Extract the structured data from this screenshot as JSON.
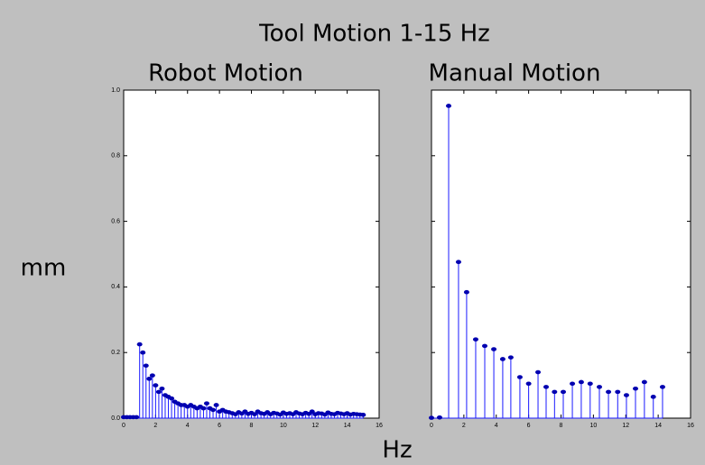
{
  "title": "Tool Motion 1-15 Hz",
  "ylabel": "mm",
  "xlabel": "Hz",
  "chart_data": [
    {
      "type": "stem",
      "title": "Robot Motion",
      "color": "#1a1aff",
      "x": [
        0,
        0.2,
        0.4,
        0.6,
        0.8,
        1,
        1.2,
        1.4,
        1.6,
        1.8,
        2,
        2.2,
        2.4,
        2.6,
        2.8,
        3,
        3.2,
        3.4,
        3.6,
        3.8,
        4,
        4.2,
        4.4,
        4.6,
        4.8,
        5,
        5.2,
        5.4,
        5.6,
        5.8,
        6,
        6.2,
        6.4,
        6.6,
        6.8,
        7,
        7.2,
        7.4,
        7.6,
        7.8,
        8,
        8.2,
        8.4,
        8.6,
        8.8,
        9,
        9.2,
        9.4,
        9.6,
        9.8,
        10,
        10.2,
        10.4,
        10.6,
        10.8,
        11,
        11.2,
        11.4,
        11.6,
        11.8,
        12,
        12.2,
        12.4,
        12.6,
        12.8,
        13,
        13.2,
        13.4,
        13.6,
        13.8,
        14,
        14.2,
        14.4,
        14.6,
        14.8,
        15
      ],
      "values": [
        0.003,
        0.003,
        0.003,
        0.003,
        0.003,
        0.225,
        0.2,
        0.16,
        0.12,
        0.13,
        0.1,
        0.08,
        0.09,
        0.07,
        0.065,
        0.06,
        0.05,
        0.045,
        0.04,
        0.04,
        0.035,
        0.04,
        0.035,
        0.03,
        0.035,
        0.03,
        0.045,
        0.03,
        0.025,
        0.04,
        0.02,
        0.025,
        0.02,
        0.018,
        0.015,
        0.012,
        0.018,
        0.014,
        0.02,
        0.013,
        0.016,
        0.012,
        0.02,
        0.015,
        0.013,
        0.018,
        0.012,
        0.016,
        0.014,
        0.011,
        0.017,
        0.013,
        0.015,
        0.012,
        0.018,
        0.014,
        0.012,
        0.016,
        0.013,
        0.02,
        0.012,
        0.015,
        0.014,
        0.011,
        0.017,
        0.013,
        0.012,
        0.016,
        0.014,
        0.012,
        0.015,
        0.011,
        0.013,
        0.012,
        0.011,
        0.01
      ],
      "xlim": [
        0,
        16
      ],
      "xticks": [
        0,
        2,
        4,
        6,
        8,
        10,
        12,
        14,
        16
      ],
      "ylim": [
        0,
        1
      ],
      "yticks": [
        {
          "value": 0,
          "label": "0.0"
        },
        0.2,
        0.4,
        0.6,
        0.8,
        {
          "value": 1,
          "label": "1.0"
        }
      ],
      "show_ytick_labels": true
    },
    {
      "type": "stem",
      "title": "Manual Motion",
      "color": "#1a1aff",
      "x": [
        0,
        0.5,
        1.06,
        1.67,
        2.17,
        2.73,
        3.29,
        3.85,
        4.4,
        4.9,
        5.46,
        6.0,
        6.58,
        7.08,
        7.6,
        8.14,
        8.7,
        9.25,
        9.8,
        10.37,
        10.93,
        11.5,
        12.04,
        12.6,
        13.15,
        13.7,
        14.27
      ],
      "values": [
        0.001,
        0.002,
        0.952,
        0.476,
        0.384,
        0.24,
        0.22,
        0.21,
        0.18,
        0.185,
        0.125,
        0.105,
        0.14,
        0.095,
        0.08,
        0.08,
        0.105,
        0.11,
        0.105,
        0.095,
        0.08,
        0.08,
        0.07,
        0.09,
        0.11,
        0.065,
        0.095
      ],
      "xlim": [
        0,
        16
      ],
      "xticks": [
        0,
        2,
        4,
        6,
        8,
        10,
        12,
        14,
        16
      ],
      "ylim": [
        0,
        1
      ],
      "yticks": [
        0,
        0.2,
        0.4,
        0.6,
        0.8,
        1
      ],
      "show_ytick_labels": false
    }
  ]
}
